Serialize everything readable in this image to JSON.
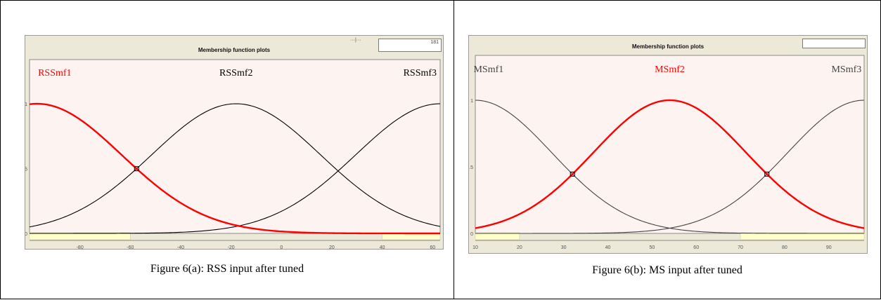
{
  "panel_title": "Membership function plots",
  "chart_data": [
    {
      "type": "line",
      "title": "Membership function plots",
      "xlim": [
        -100,
        63
      ],
      "ylim": [
        0,
        1
      ],
      "x_ticks": [
        -80,
        -60,
        -40,
        -20,
        0,
        20,
        40,
        60
      ],
      "y_ticks": [
        0,
        0.5,
        1
      ],
      "grid": false,
      "range_box_value": "181",
      "selected_series": "RSSmf1",
      "series": [
        {
          "name": "RSSmf1",
          "mf": "gaussmf",
          "sigma": 33.5,
          "center": -97,
          "color": "#ff0000",
          "label_x": -90
        },
        {
          "name": "RSSmf2",
          "mf": "gaussmf",
          "sigma": 33.5,
          "center": -18,
          "color": "#000000",
          "label_x": -18
        },
        {
          "name": "RSSmf3",
          "mf": "gaussmf",
          "sigma": 33.5,
          "center": 63,
          "color": "#000000",
          "label_x": 55
        }
      ],
      "caption": "Figure 6(a): RSS input after tuned"
    },
    {
      "type": "line",
      "title": "Membership function plots",
      "xlim": [
        10,
        98
      ],
      "ylim": [
        0,
        1
      ],
      "x_ticks": [
        10,
        20,
        30,
        40,
        50,
        60,
        70,
        80,
        90
      ],
      "y_ticks": [
        0,
        0.5,
        1
      ],
      "grid": false,
      "selected_series": "MSmf2",
      "series": [
        {
          "name": "MSmf1",
          "mf": "gaussmf",
          "sigma": 17.3,
          "center": 10,
          "color": "#444444",
          "label_x": 13
        },
        {
          "name": "MSmf2",
          "mf": "gaussmf",
          "sigma": 17.3,
          "center": 54,
          "color": "#ff0000",
          "label_x": 54
        },
        {
          "name": "MSmf3",
          "mf": "gaussmf",
          "sigma": 17.3,
          "center": 98,
          "color": "#444444",
          "label_x": 94
        }
      ],
      "caption": "Figure 6(b):  MS  input after tuned"
    }
  ]
}
